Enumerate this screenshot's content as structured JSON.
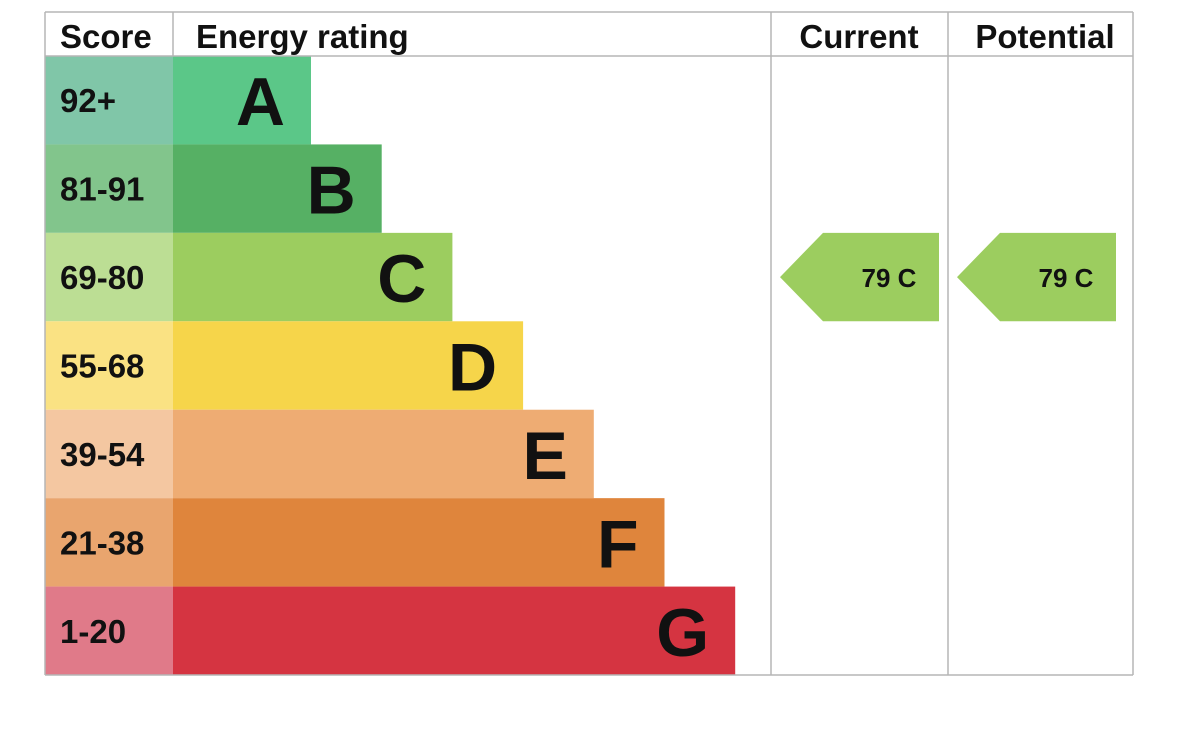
{
  "chart_data": {
    "type": "bar",
    "headers": {
      "score": "Score",
      "rating": "Energy rating",
      "current": "Current",
      "potential": "Potential"
    },
    "bands": [
      {
        "score": "92+",
        "letter": "A",
        "color": "#5BC788",
        "score_color": "#80C6A8"
      },
      {
        "score": "81-91",
        "letter": "B",
        "color": "#56B064",
        "score_color": "#82C58C"
      },
      {
        "score": "69-80",
        "letter": "C",
        "color": "#9CCD5F",
        "score_color": "#BCDE94"
      },
      {
        "score": "55-68",
        "letter": "D",
        "color": "#F6D54A",
        "score_color": "#FAE283"
      },
      {
        "score": "39-54",
        "letter": "E",
        "color": "#EEAC73",
        "score_color": "#F4C7A1"
      },
      {
        "score": "21-38",
        "letter": "F",
        "color": "#DF853C",
        "score_color": "#E9A56E"
      },
      {
        "score": "1-20",
        "letter": "G",
        "color": "#D53441",
        "score_color": "#E07A89"
      }
    ],
    "current": {
      "value": 79,
      "letter": "C",
      "label": "79  C",
      "color": "#9CCD5F"
    },
    "potential": {
      "value": 79,
      "letter": "C",
      "label": "79  C",
      "color": "#9CCD5F"
    },
    "colors": {
      "grid": "#B5B5B5",
      "text": "#111111"
    }
  }
}
